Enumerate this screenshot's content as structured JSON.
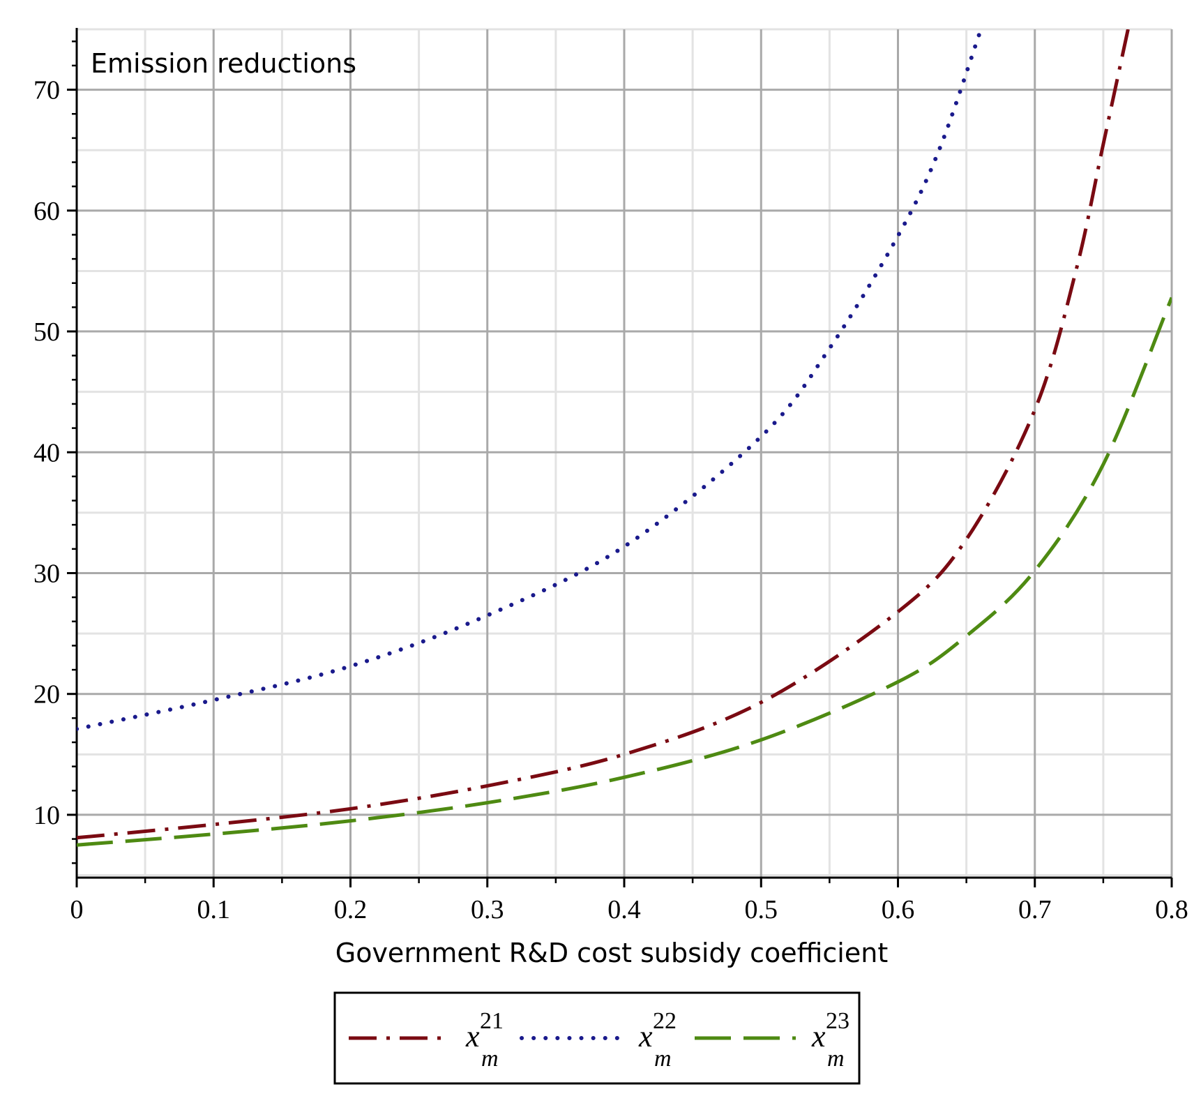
{
  "chart_data": {
    "type": "line",
    "title": "",
    "annotation": "Emission reductions",
    "xlabel": "Government R&D cost subsidy coefficient",
    "ylabel": "",
    "xlim": [
      0,
      0.8
    ],
    "ylim": [
      4.8,
      75
    ],
    "x_ticks": [
      0,
      0.1,
      0.2,
      0.3,
      0.4,
      0.5,
      0.6,
      0.7,
      0.8
    ],
    "x_tick_labels": [
      "0",
      "0.1",
      "0.2",
      "0.3",
      "0.4",
      "0.5",
      "0.6",
      "0.7",
      "0.8"
    ],
    "y_ticks": [
      10,
      20,
      30,
      40,
      50,
      60,
      70
    ],
    "y_tick_labels": [
      "10",
      "20",
      "30",
      "40",
      "50",
      "60",
      "70"
    ],
    "grid": true,
    "legend_position": "bottom",
    "series": [
      {
        "name": "x",
        "sup": "21",
        "sub": "m",
        "color": "#7a0a12",
        "style": "dash-dot",
        "x": [
          0,
          0.1,
          0.2,
          0.3,
          0.4,
          0.5,
          0.6,
          0.65,
          0.7,
          0.73,
          0.75,
          0.77
        ],
        "y": [
          8.1,
          9.2,
          10.5,
          12.4,
          15.0,
          19.3,
          26.8,
          32.8,
          43.5,
          55.0,
          65.5,
          76.0
        ]
      },
      {
        "name": "x",
        "sup": "22",
        "sub": "m",
        "color": "#1a1a8c",
        "style": "dotted",
        "x": [
          0,
          0.1,
          0.2,
          0.3,
          0.4,
          0.5,
          0.55,
          0.6,
          0.63,
          0.66
        ],
        "y": [
          17.1,
          19.5,
          22.3,
          26.5,
          32.2,
          41.3,
          48.6,
          57.9,
          65.0,
          74.8
        ]
      },
      {
        "name": "x",
        "sup": "23",
        "sub": "m",
        "color": "#4e8a12",
        "style": "dashed",
        "x": [
          0,
          0.1,
          0.2,
          0.3,
          0.4,
          0.5,
          0.6,
          0.65,
          0.7,
          0.75,
          0.8
        ],
        "y": [
          7.5,
          8.4,
          9.5,
          11.0,
          13.1,
          16.2,
          21.0,
          24.8,
          30.2,
          39.0,
          52.8
        ]
      }
    ]
  }
}
